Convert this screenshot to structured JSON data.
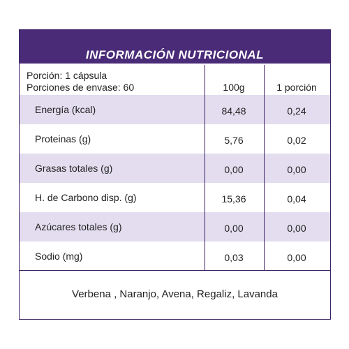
{
  "header": {
    "title": "INFORMACIÓN NUTRICIONAL"
  },
  "table": {
    "portion": [
      "Porción: 1 cápsula",
      "Porciones de envase: 60"
    ],
    "columns": [
      "100g",
      "1 porción"
    ],
    "rows": [
      [
        "Energía (kcal)",
        "84,48",
        "0,24"
      ],
      [
        "Proteinas (g)",
        "5,76",
        "0,02"
      ],
      [
        "Grasas totales (g)",
        "0,00",
        "0,00"
      ],
      [
        "H. de Carbono disp. (g)",
        "15,36",
        "0,04"
      ],
      [
        "Azúcares totales (g)",
        "0,00",
        "0,00"
      ],
      [
        "Sodio (mg)",
        "0,03",
        "0,00"
      ]
    ]
  },
  "footer": {
    "ingredients": "Verbena , Naranjo, Avena, Regaliz, Lavanda"
  }
}
